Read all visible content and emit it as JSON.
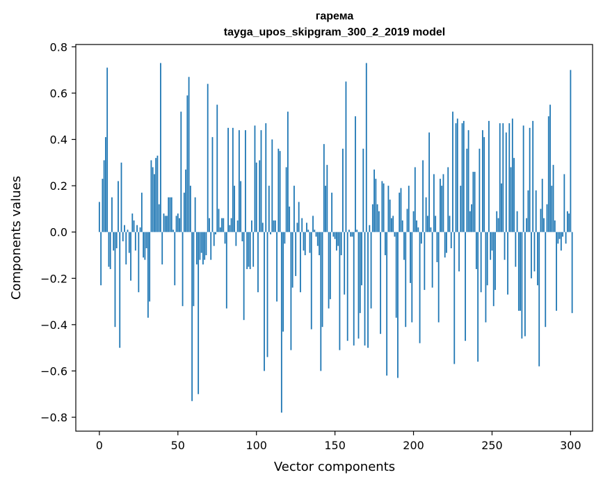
{
  "chart_data": {
    "type": "bar",
    "title_line1": "гарема",
    "title_line2": "tayga_upos_skipgram_300_2_2019 model",
    "xlabel": "Vector components",
    "ylabel": "Components values",
    "xlim": [
      -15,
      314
    ],
    "ylim": [
      -0.86,
      0.81
    ],
    "xticks": [
      0,
      50,
      100,
      150,
      200,
      250,
      300
    ],
    "yticks": [
      -0.8,
      -0.6,
      -0.4,
      -0.2,
      0.0,
      0.2,
      0.4,
      0.6,
      0.8
    ],
    "xtick_labels": [
      "0",
      "50",
      "100",
      "150",
      "200",
      "250",
      "300"
    ],
    "ytick_labels": [
      "−0.8",
      "−0.6",
      "−0.4",
      "−0.2",
      "0.0",
      "0.2",
      "0.4",
      "0.6",
      "0.8"
    ],
    "bar_color": "#1f77b4",
    "values": [
      0.13,
      -0.23,
      0.23,
      0.31,
      0.41,
      0.71,
      -0.15,
      -0.16,
      0.15,
      -0.08,
      -0.41,
      -0.07,
      0.22,
      -0.5,
      0.3,
      -0.04,
      0.03,
      -0.14,
      0.01,
      -0.09,
      -0.21,
      0.08,
      0.05,
      -0.08,
      0.03,
      -0.26,
      0.02,
      0.17,
      -0.11,
      -0.12,
      -0.07,
      -0.37,
      -0.3,
      0.31,
      0.28,
      0.25,
      0.32,
      0.33,
      0.12,
      0.73,
      -0.14,
      0.08,
      0.07,
      0.07,
      0.15,
      0.15,
      0.15,
      0.01,
      -0.23,
      0.07,
      0.08,
      0.06,
      0.52,
      -0.32,
      0.17,
      0.27,
      0.59,
      0.67,
      0.2,
      -0.73,
      -0.32,
      0.15,
      -0.14,
      -0.7,
      -0.12,
      -0.09,
      -0.14,
      -0.12,
      -0.1,
      0.64,
      0.06,
      -0.12,
      0.41,
      -0.06,
      -0.01,
      0.55,
      0.1,
      0.02,
      0.06,
      0.06,
      -0.05,
      -0.33,
      0.45,
      0.03,
      0.06,
      0.45,
      0.2,
      -0.06,
      0.05,
      0.44,
      0.22,
      -0.04,
      -0.38,
      0.44,
      -0.16,
      -0.15,
      -0.16,
      0.05,
      -0.15,
      0.46,
      0.3,
      -0.26,
      0.31,
      0.44,
      0.04,
      -0.6,
      0.47,
      -0.54,
      0.2,
      -0.01,
      0.4,
      0.05,
      0.05,
      -0.3,
      0.36,
      0.35,
      -0.78,
      -0.43,
      -0.05,
      0.28,
      0.52,
      0.11,
      -0.51,
      -0.24,
      0.2,
      -0.19,
      0.04,
      0.13,
      -0.26,
      0.06,
      -0.08,
      -0.1,
      0.04,
      0.01,
      -0.09,
      -0.42,
      0.07,
      0.01,
      -0.02,
      -0.06,
      -0.1,
      -0.6,
      -0.41,
      0.38,
      0.2,
      0.29,
      -0.33,
      -0.29,
      0.17,
      -0.02,
      -0.03,
      -0.08,
      -0.06,
      -0.51,
      -0.1,
      0.36,
      -0.27,
      0.65,
      -0.47,
      0.01,
      -0.02,
      -0.02,
      -0.49,
      0.5,
      0.01,
      -0.46,
      -0.35,
      -0.23,
      0.36,
      -0.49,
      0.73,
      -0.5,
      0.03,
      -0.33,
      0.12,
      0.27,
      0.23,
      0.12,
      0.09,
      -0.44,
      0.22,
      0.21,
      -0.1,
      -0.62,
      0.2,
      0.14,
      0.06,
      0.07,
      -0.02,
      -0.37,
      -0.63,
      0.17,
      0.19,
      0.05,
      -0.12,
      -0.41,
      0.1,
      0.2,
      -0.22,
      -0.39,
      0.09,
      0.28,
      0.05,
      0.02,
      -0.48,
      -0.05,
      0.31,
      -0.25,
      0.15,
      0.07,
      0.43,
      0.02,
      -0.24,
      0.25,
      0.07,
      -0.13,
      -0.39,
      0.23,
      0.2,
      0.25,
      -0.11,
      -0.09,
      0.28,
      0.07,
      -0.07,
      0.52,
      -0.57,
      0.47,
      0.49,
      -0.17,
      0.2,
      0.47,
      0.48,
      -0.47,
      0.36,
      0.44,
      0.09,
      0.12,
      0.26,
      0.26,
      -0.16,
      -0.56,
      0.36,
      -0.26,
      0.44,
      0.41,
      -0.39,
      -0.23,
      0.48,
      -0.12,
      -0.08,
      -0.32,
      -0.25,
      0.09,
      0.06,
      0.47,
      0.21,
      0.47,
      -0.12,
      0.43,
      -0.27,
      0.47,
      0.28,
      0.49,
      0.32,
      -0.15,
      0.09,
      -0.34,
      -0.34,
      -0.46,
      0.46,
      -0.45,
      0.06,
      0.18,
      0.45,
      -0.2,
      0.48,
      -0.17,
      0.18,
      -0.23,
      -0.58,
      0.1,
      0.23,
      0.06,
      -0.41,
      0.12,
      0.5,
      0.55,
      0.2,
      0.29,
      0.05,
      -0.34,
      -0.05,
      -0.03,
      -0.08,
      -0.02,
      0.25,
      -0.05,
      0.09,
      0.08,
      0.7,
      -0.35
    ]
  }
}
